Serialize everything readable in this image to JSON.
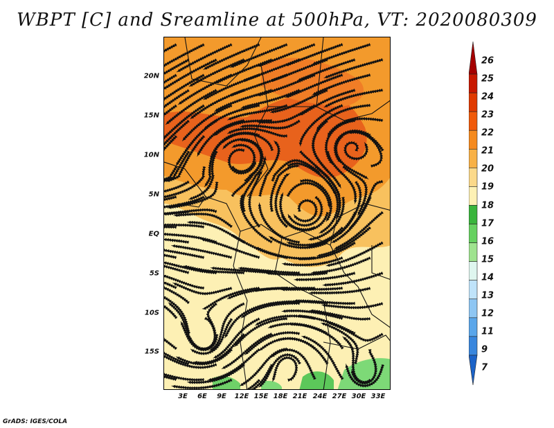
{
  "title": "WBPT [C] and Sreamline at 500hPa, VT: 2020080309",
  "credit": "GrADS: IGES/COLA",
  "map": {
    "lat_labels": [
      "20N",
      "15N",
      "10N",
      "5N",
      "EQ",
      "5S",
      "10S",
      "15S"
    ],
    "lon_labels": [
      "3E",
      "6E",
      "9E",
      "12E",
      "15E",
      "18E",
      "21E",
      "24E",
      "27E",
      "30E",
      "33E"
    ]
  },
  "colorbar": {
    "labels": [
      "26",
      "25",
      "24",
      "23",
      "22",
      "21",
      "20",
      "19",
      "18",
      "17",
      "16",
      "15",
      "14",
      "13",
      "12",
      "11",
      "9",
      "7"
    ],
    "colors": [
      "#a50000",
      "#c81800",
      "#e03a00",
      "#f05a0a",
      "#f58a1e",
      "#f8b146",
      "#fbd98a",
      "#fdf1b4",
      "#39b53c",
      "#66d160",
      "#9fe38f",
      "#dff6ef",
      "#bfe3fa",
      "#8ec6f3",
      "#5aa6ea",
      "#3986dd",
      "#1c63c8"
    ]
  },
  "colors": {
    "warm_dark": "#e8621c",
    "warm_mid": "#f39a2c",
    "warm_light": "#f8c15e",
    "pale": "#fdf0b4",
    "green": "#5cc85a"
  }
}
